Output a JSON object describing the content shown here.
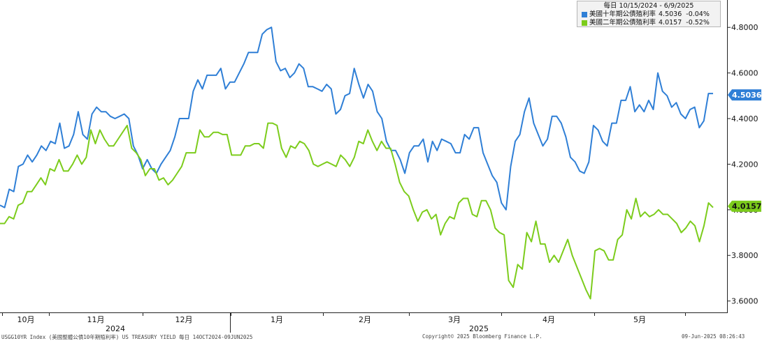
{
  "legend": {
    "header": "每日 10/15/2024 - 6/9/2025",
    "series": [
      {
        "name": "美國十年期公債殖利率",
        "last": "4.5036",
        "change": "-0.04%",
        "color": "#2f7fd6"
      },
      {
        "name": "美國二年期公債殖利率",
        "last": "4.0157",
        "change": "-0.52%",
        "color": "#7ccc1c"
      }
    ]
  },
  "chart_data": {
    "type": "line",
    "y_axis": {
      "position": "right",
      "ticks": [
        "4.8000",
        "4.6000",
        "4.4000",
        "4.2000",
        "4.0000",
        "3.8000",
        "3.6000"
      ],
      "range": [
        3.55,
        4.92
      ]
    },
    "x_axis": {
      "months": [
        "10月",
        "11月",
        "12月",
        "1月",
        "2月",
        "3月",
        "4月",
        "5月"
      ],
      "years": [
        "2024",
        "2025"
      ]
    },
    "grid": false,
    "series": [
      {
        "name": "美國十年期公債殖利率",
        "color": "#2f7fd6",
        "last_label": "4.5036",
        "values": [
          4.02,
          4.01,
          4.09,
          4.08,
          4.19,
          4.2,
          4.24,
          4.21,
          4.24,
          4.28,
          4.26,
          4.3,
          4.29,
          4.38,
          4.27,
          4.28,
          4.33,
          4.43,
          4.33,
          4.31,
          4.42,
          4.45,
          4.43,
          4.43,
          4.41,
          4.4,
          4.41,
          4.42,
          4.4,
          4.28,
          4.24,
          4.18,
          4.22,
          4.18,
          4.16,
          4.2,
          4.23,
          4.26,
          4.32,
          4.4,
          4.4,
          4.4,
          4.52,
          4.57,
          4.53,
          4.59,
          4.59,
          4.59,
          4.62,
          4.53,
          4.56,
          4.56,
          4.6,
          4.64,
          4.69,
          4.69,
          4.69,
          4.77,
          4.79,
          4.8,
          4.65,
          4.61,
          4.62,
          4.58,
          4.6,
          4.64,
          4.62,
          4.54,
          4.54,
          4.53,
          4.52,
          4.55,
          4.53,
          4.42,
          4.44,
          4.5,
          4.51,
          4.62,
          4.55,
          4.49,
          4.55,
          4.52,
          4.43,
          4.4,
          4.3,
          4.26,
          4.26,
          4.22,
          4.16,
          4.25,
          4.28,
          4.28,
          4.31,
          4.21,
          4.3,
          4.26,
          4.31,
          4.3,
          4.29,
          4.25,
          4.25,
          4.33,
          4.31,
          4.36,
          4.36,
          4.25,
          4.2,
          4.15,
          4.12,
          4.03,
          4.0,
          4.19,
          4.3,
          4.33,
          4.43,
          4.49,
          4.38,
          4.33,
          4.28,
          4.31,
          4.41,
          4.41,
          4.38,
          4.32,
          4.23,
          4.21,
          4.17,
          4.16,
          4.21,
          4.37,
          4.35,
          4.3,
          4.28,
          4.38,
          4.38,
          4.48,
          4.48,
          4.54,
          4.43,
          4.46,
          4.43,
          4.48,
          4.44,
          4.6,
          4.52,
          4.5,
          4.45,
          4.47,
          4.42,
          4.4,
          4.44,
          4.45,
          4.36,
          4.39,
          4.51,
          4.51
        ]
      },
      {
        "name": "美國二年期公債殖利率",
        "color": "#7ccc1c",
        "last_label": "4.0157",
        "values": [
          3.94,
          3.94,
          3.97,
          3.96,
          4.02,
          4.03,
          4.08,
          4.08,
          4.11,
          4.14,
          4.11,
          4.18,
          4.17,
          4.22,
          4.17,
          4.17,
          4.2,
          4.24,
          4.2,
          4.23,
          4.35,
          4.29,
          4.35,
          4.31,
          4.28,
          4.28,
          4.31,
          4.34,
          4.37,
          4.27,
          4.25,
          4.22,
          4.15,
          4.18,
          4.18,
          4.13,
          4.14,
          4.11,
          4.13,
          4.16,
          4.19,
          4.25,
          4.25,
          4.25,
          4.35,
          4.32,
          4.32,
          4.34,
          4.34,
          4.33,
          4.33,
          4.24,
          4.24,
          4.24,
          4.28,
          4.28,
          4.29,
          4.29,
          4.27,
          4.38,
          4.38,
          4.37,
          4.27,
          4.23,
          4.28,
          4.27,
          4.3,
          4.29,
          4.26,
          4.2,
          4.19,
          4.2,
          4.21,
          4.2,
          4.19,
          4.24,
          4.22,
          4.19,
          4.23,
          4.3,
          4.29,
          4.35,
          4.3,
          4.26,
          4.3,
          4.27,
          4.27,
          4.2,
          4.12,
          4.08,
          4.06,
          4.0,
          3.95,
          3.99,
          4.0,
          3.96,
          3.98,
          3.89,
          3.94,
          3.97,
          3.96,
          4.03,
          4.05,
          4.05,
          3.98,
          3.97,
          4.04,
          4.04,
          4.0,
          3.92,
          3.9,
          3.89,
          3.69,
          3.66,
          3.76,
          3.74,
          3.9,
          3.86,
          3.95,
          3.85,
          3.85,
          3.77,
          3.8,
          3.77,
          3.82,
          3.87,
          3.8,
          3.75,
          3.7,
          3.65,
          3.61,
          3.82,
          3.83,
          3.82,
          3.78,
          3.78,
          3.87,
          3.89,
          4.0,
          3.96,
          4.05,
          3.97,
          3.99,
          3.97,
          3.98,
          4.0,
          3.98,
          3.98,
          3.96,
          3.94,
          3.9,
          3.92,
          3.95,
          3.93,
          3.86,
          3.93,
          4.03,
          4.01
        ]
      }
    ]
  },
  "footer": {
    "left": "USGG10YR Index (美國整體公債10年期殖利率) US TREASURY YIELD  每日 14OCT2024-09JUN2025",
    "center": "Copyright© 2025 Bloomberg Finance L.P.",
    "right": "09-Jun-2025 08:26:43"
  }
}
